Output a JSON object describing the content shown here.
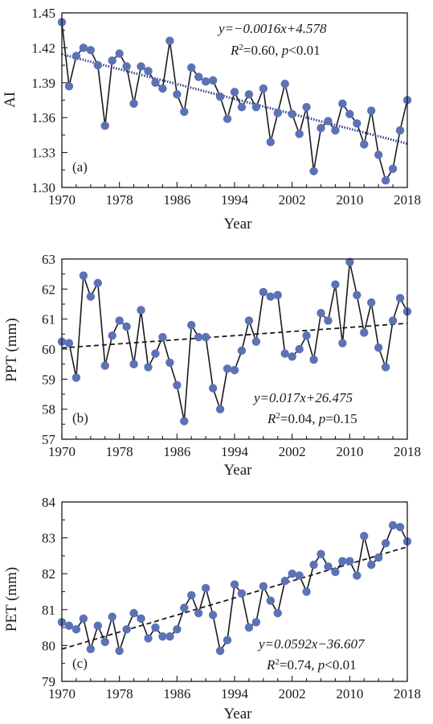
{
  "colors": {
    "series": "#1a1a1a",
    "marker": "#5b72b5",
    "trend_a": "#2f3f86",
    "trend": "#1a1a1a"
  },
  "chart_data": [
    {
      "type": "line",
      "panel_label": "(a)",
      "xlabel": "Year",
      "ylabel": "AI",
      "xlim": [
        1970,
        2018
      ],
      "ylim": [
        1.3,
        1.45
      ],
      "xticks": [
        1970,
        1978,
        1986,
        1994,
        2002,
        2010,
        2018
      ],
      "yticks": [
        1.3,
        1.33,
        1.36,
        1.39,
        1.42,
        1.45
      ],
      "ytick_labels": [
        "1.30",
        "1.33",
        "1.36",
        "1.39",
        "1.42",
        "1.45"
      ],
      "x": [
        1970,
        1971,
        1972,
        1973,
        1974,
        1975,
        1976,
        1977,
        1978,
        1979,
        1980,
        1981,
        1982,
        1983,
        1984,
        1985,
        1986,
        1987,
        1988,
        1989,
        1990,
        1991,
        1992,
        1993,
        1994,
        1995,
        1996,
        1997,
        1998,
        1999,
        2000,
        2001,
        2002,
        2003,
        2004,
        2005,
        2006,
        2007,
        2008,
        2009,
        2010,
        2011,
        2012,
        2013,
        2014,
        2015,
        2016,
        2017,
        2018
      ],
      "values": [
        1.442,
        1.387,
        1.413,
        1.42,
        1.418,
        1.405,
        1.353,
        1.409,
        1.415,
        1.404,
        1.372,
        1.404,
        1.4,
        1.39,
        1.385,
        1.426,
        1.38,
        1.365,
        1.403,
        1.395,
        1.391,
        1.392,
        1.378,
        1.359,
        1.382,
        1.369,
        1.38,
        1.369,
        1.385,
        1.339,
        1.364,
        1.389,
        1.363,
        1.346,
        1.369,
        1.314,
        1.351,
        1.357,
        1.349,
        1.372,
        1.363,
        1.355,
        1.337,
        1.366,
        1.328,
        1.306,
        1.316,
        1.349,
        1.375
      ],
      "trend": {
        "x": [
          1970,
          2018
        ],
        "y": [
          1.4144,
          1.3376
        ],
        "style": "dotted"
      },
      "equation": "y=−0.0016x+4.578",
      "stats": "R2=0.60, p<0.01"
    },
    {
      "type": "line",
      "panel_label": "(b)",
      "xlabel": "Year",
      "ylabel": "PPT (mm)",
      "xlim": [
        1970,
        2018
      ],
      "ylim": [
        57,
        63
      ],
      "xticks": [
        1970,
        1978,
        1986,
        1994,
        2002,
        2010,
        2018
      ],
      "yticks": [
        57,
        58,
        59,
        60,
        61,
        62,
        63
      ],
      "ytick_labels": [
        "57",
        "58",
        "59",
        "60",
        "61",
        "62",
        "63"
      ],
      "x": [
        1970,
        1971,
        1972,
        1973,
        1974,
        1975,
        1976,
        1977,
        1978,
        1979,
        1980,
        1981,
        1982,
        1983,
        1984,
        1985,
        1986,
        1987,
        1988,
        1989,
        1990,
        1991,
        1992,
        1993,
        1994,
        1995,
        1996,
        1997,
        1998,
        1999,
        2000,
        2001,
        2002,
        2003,
        2004,
        2005,
        2006,
        2007,
        2008,
        2009,
        2010,
        2011,
        2012,
        2013,
        2014,
        2015,
        2016,
        2017,
        2018
      ],
      "values": [
        60.25,
        60.2,
        59.05,
        62.45,
        61.75,
        62.2,
        59.45,
        60.45,
        60.95,
        60.75,
        59.5,
        61.3,
        59.4,
        59.85,
        60.4,
        59.55,
        58.8,
        57.6,
        60.8,
        60.4,
        60.4,
        58.7,
        58.0,
        59.35,
        59.3,
        59.95,
        60.95,
        60.25,
        61.9,
        61.75,
        61.8,
        59.85,
        59.75,
        60.0,
        60.45,
        59.65,
        61.2,
        60.95,
        62.15,
        60.2,
        62.9,
        61.8,
        60.55,
        61.55,
        60.05,
        59.4,
        60.95,
        61.7,
        61.25
      ],
      "trend": {
        "x": [
          1970,
          2018
        ],
        "y": [
          60.04,
          60.86
        ],
        "style": "dashed"
      },
      "equation": "y=0.017x+26.475",
      "stats": "R2=0.04, p=0.15"
    },
    {
      "type": "line",
      "panel_label": "(c)",
      "xlabel": "Year",
      "ylabel": "PET (mm)",
      "xlim": [
        1970,
        2018
      ],
      "ylim": [
        79,
        84
      ],
      "xticks": [
        1970,
        1978,
        1986,
        1994,
        2002,
        2010,
        2018
      ],
      "yticks": [
        79,
        80,
        81,
        82,
        83,
        84
      ],
      "ytick_labels": [
        "79",
        "80",
        "81",
        "82",
        "83",
        "84"
      ],
      "x": [
        1970,
        1971,
        1972,
        1973,
        1974,
        1975,
        1976,
        1977,
        1978,
        1979,
        1980,
        1981,
        1982,
        1983,
        1984,
        1985,
        1986,
        1987,
        1988,
        1989,
        1990,
        1991,
        1992,
        1993,
        1994,
        1995,
        1996,
        1997,
        1998,
        1999,
        2000,
        2001,
        2002,
        2003,
        2004,
        2005,
        2006,
        2007,
        2008,
        2009,
        2010,
        2011,
        2012,
        2013,
        2014,
        2015,
        2016,
        2017,
        2018
      ],
      "values": [
        80.65,
        80.55,
        80.45,
        80.75,
        79.9,
        80.55,
        80.1,
        80.8,
        79.85,
        80.45,
        80.9,
        80.75,
        80.2,
        80.5,
        80.25,
        80.25,
        80.45,
        81.05,
        81.4,
        80.9,
        81.6,
        80.85,
        79.85,
        80.15,
        81.7,
        81.45,
        80.5,
        80.65,
        81.65,
        81.25,
        80.9,
        81.8,
        82.0,
        81.95,
        81.5,
        82.25,
        82.55,
        82.2,
        82.05,
        82.35,
        82.35,
        81.95,
        83.05,
        82.25,
        82.45,
        82.85,
        83.35,
        83.3,
        82.9
      ],
      "trend": {
        "x": [
          1970,
          2018
        ],
        "y": [
          79.9,
          82.75
        ],
        "style": "dashed"
      },
      "equation": "y=0.0592x−36.607",
      "stats": "R2=0.74, p<0.01"
    }
  ]
}
